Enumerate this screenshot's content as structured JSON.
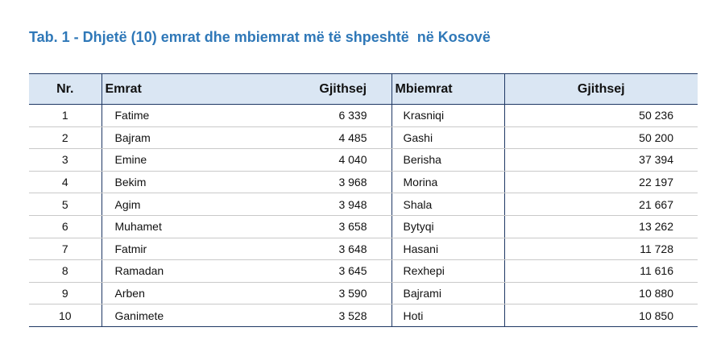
{
  "title": "Tab. 1 - Dhjetë (10) emrat dhe mbiemrat më të shpeshtë  në Kosovë",
  "headers": {
    "nr": "Nr.",
    "emrat": "Emrat",
    "gjithsej_emrat": "Gjithsej",
    "mbiemrat": "Mbiemrat",
    "gjithsej_mbiemrat": "Gjithsej"
  },
  "rows": [
    {
      "nr": "1",
      "emri": "Fatime",
      "emri_total": "6 339",
      "mbiemri": "Krasniqi",
      "mbiemri_total": "50 236"
    },
    {
      "nr": "2",
      "emri": "Bajram",
      "emri_total": "4 485",
      "mbiemri": "Gashi",
      "mbiemri_total": "50 200"
    },
    {
      "nr": "3",
      "emri": "Emine",
      "emri_total": "4 040",
      "mbiemri": "Berisha",
      "mbiemri_total": "37 394"
    },
    {
      "nr": "4",
      "emri": "Bekim",
      "emri_total": "3 968",
      "mbiemri": "Morina",
      "mbiemri_total": "22 197"
    },
    {
      "nr": "5",
      "emri": "Agim",
      "emri_total": "3 948",
      "mbiemri": "Shala",
      "mbiemri_total": "21 667"
    },
    {
      "nr": "6",
      "emri": "Muhamet",
      "emri_total": "3 658",
      "mbiemri": "Bytyqi",
      "mbiemri_total": "13 262"
    },
    {
      "nr": "7",
      "emri": "Fatmir",
      "emri_total": "3 648",
      "mbiemri": "Hasani",
      "mbiemri_total": "11 728"
    },
    {
      "nr": "8",
      "emri": "Ramadan",
      "emri_total": "3 645",
      "mbiemri": "Rexhepi",
      "mbiemri_total": "11 616"
    },
    {
      "nr": "9",
      "emri": "Arben",
      "emri_total": "3 590",
      "mbiemri": "Bajrami",
      "mbiemri_total": "10 880"
    },
    {
      "nr": "10",
      "emri": "Ganimete",
      "emri_total": "3 528",
      "mbiemri": "Hoti",
      "mbiemri_total": "10 850"
    }
  ],
  "colors": {
    "title": "#2f78b8",
    "header_background": "#dae6f3",
    "border": "#1f3864"
  }
}
